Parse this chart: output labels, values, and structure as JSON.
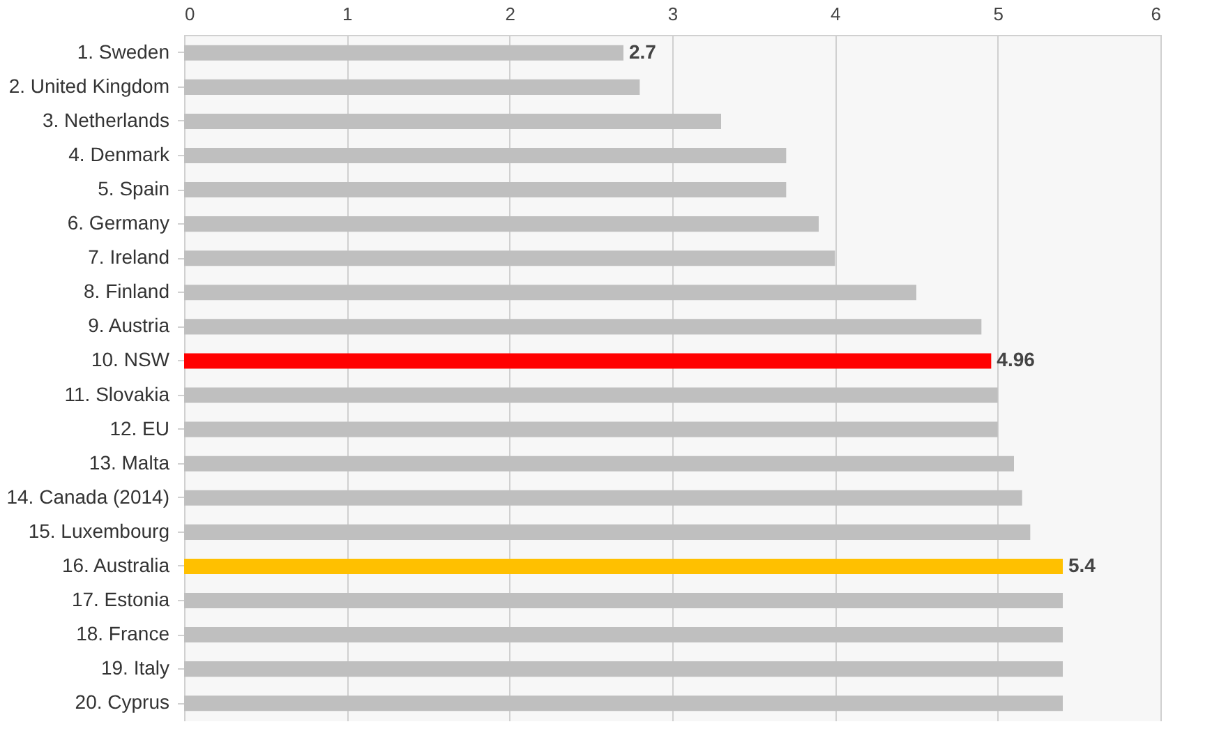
{
  "chart_data": {
    "type": "bar",
    "orientation": "horizontal",
    "categories": [
      "1. Sweden",
      "2. United Kingdom",
      "3. Netherlands",
      "4. Denmark",
      "5. Spain",
      "6. Germany",
      "7. Ireland",
      "8. Finland",
      "9. Austria",
      "10. NSW",
      "11. Slovakia",
      "12. EU",
      "13. Malta",
      "14. Canada (2014)",
      "15. Luxembourg",
      "16. Australia",
      "17. Estonia",
      "18. France",
      "19. Italy",
      "20. Cyprus"
    ],
    "values": [
      2.7,
      2.8,
      3.3,
      3.7,
      3.7,
      3.9,
      4.0,
      4.5,
      4.9,
      4.96,
      5.0,
      5.0,
      5.1,
      5.15,
      5.2,
      5.4,
      5.4,
      5.4,
      5.4,
      5.4
    ],
    "colors": [
      "#bfbfbf",
      "#bfbfbf",
      "#bfbfbf",
      "#bfbfbf",
      "#bfbfbf",
      "#bfbfbf",
      "#bfbfbf",
      "#bfbfbf",
      "#bfbfbf",
      "#ff0000",
      "#bfbfbf",
      "#bfbfbf",
      "#bfbfbf",
      "#bfbfbf",
      "#bfbfbf",
      "#ffc000",
      "#bfbfbf",
      "#bfbfbf",
      "#bfbfbf",
      "#bfbfbf"
    ],
    "value_labels": [
      "2.7",
      null,
      null,
      null,
      null,
      null,
      null,
      null,
      null,
      "4.96",
      null,
      null,
      null,
      null,
      null,
      "5.4",
      null,
      null,
      null,
      null
    ],
    "xlim": [
      0,
      6
    ],
    "xticks": [
      0,
      1,
      2,
      3,
      4,
      5,
      6
    ],
    "grid": "x",
    "legend": false
  }
}
